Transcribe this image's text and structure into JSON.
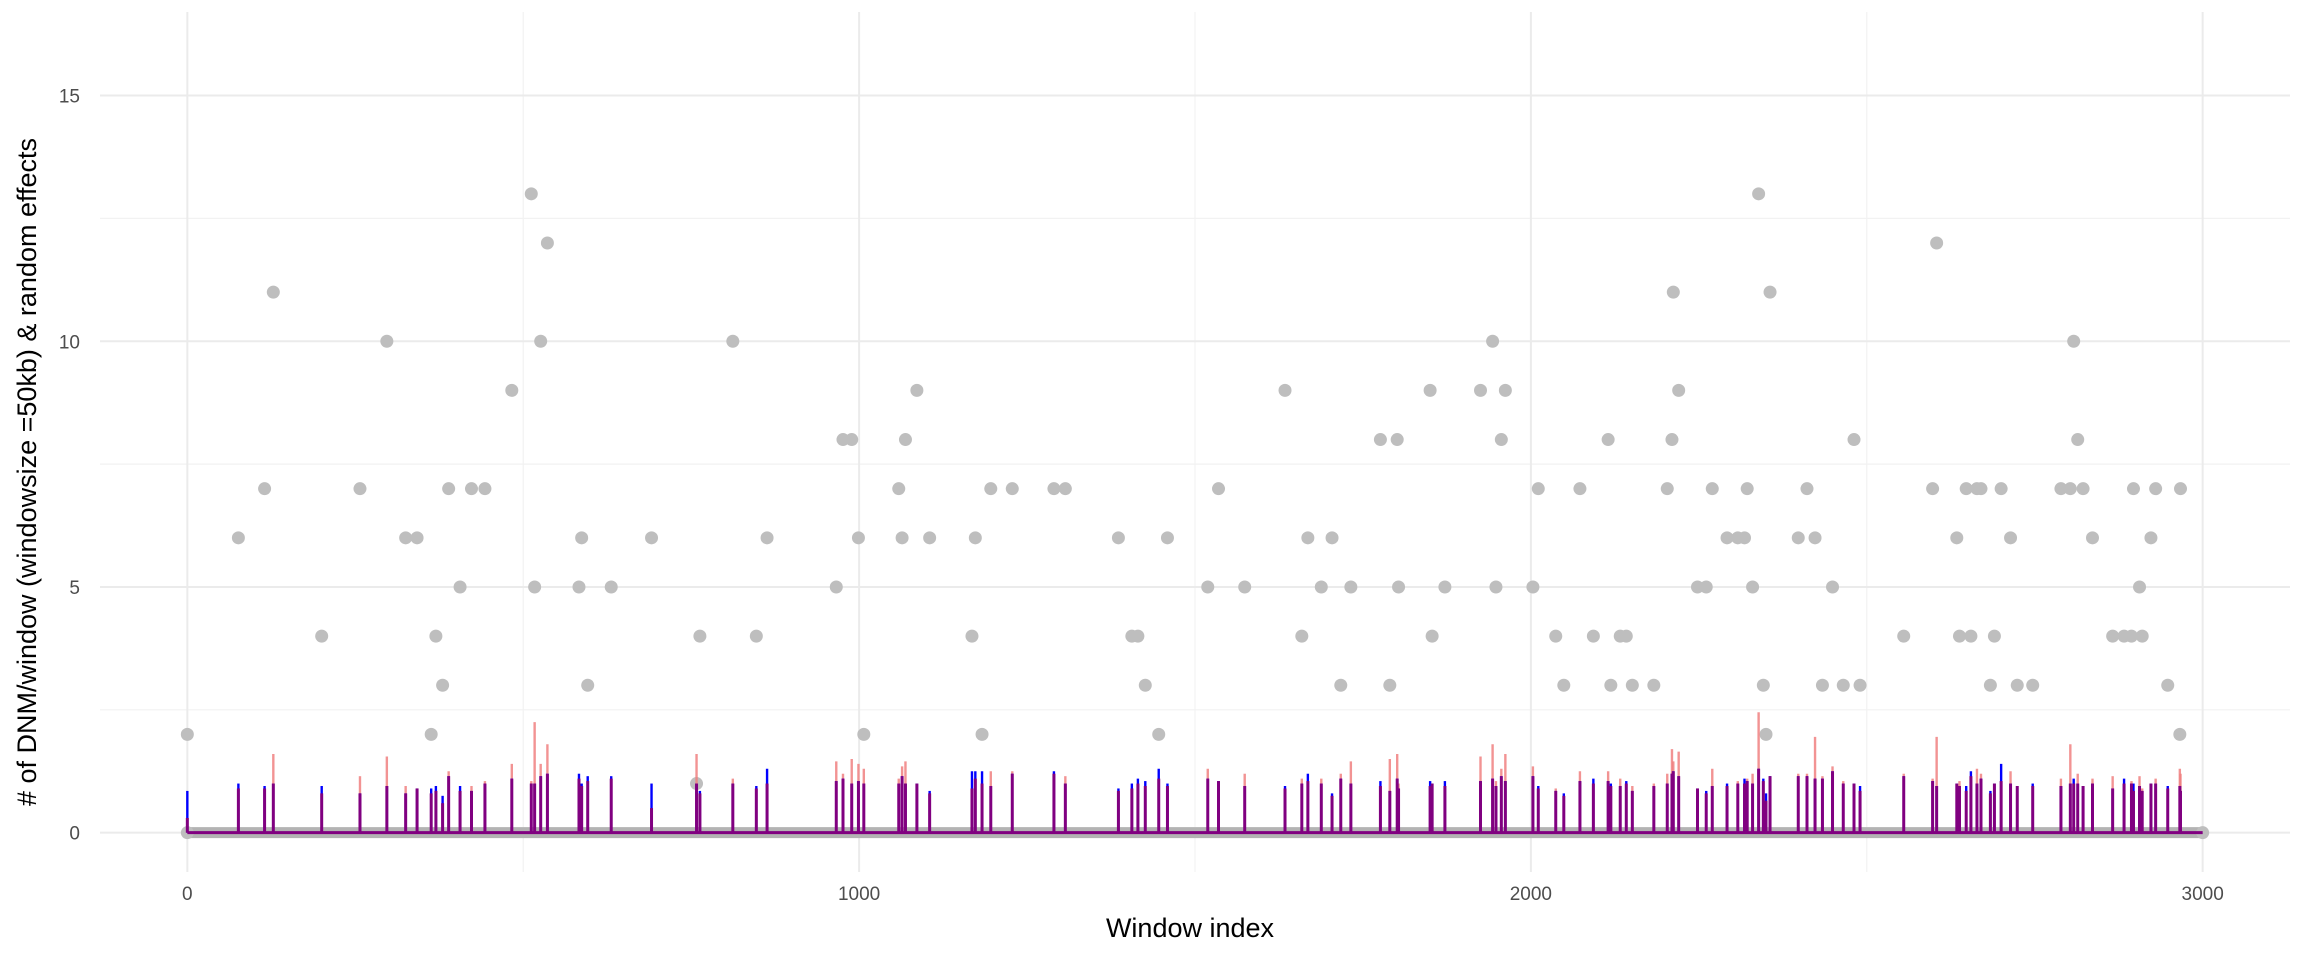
{
  "chart_data": {
    "type": "scatter",
    "title": "",
    "xlabel": "Window index",
    "ylabel": "# of DNM/window (windowsize =50kb) & random effects",
    "xlim": [
      -130,
      3130
    ],
    "ylim": [
      -0.8,
      16.7
    ],
    "x_ticks": [
      0,
      1000,
      2000,
      3000
    ],
    "x_tick_labels": [
      "0",
      "1000",
      "2000",
      "3000"
    ],
    "y_ticks": [
      0,
      5,
      10,
      15
    ],
    "y_tick_labels": [
      "0",
      "5",
      "10",
      "15"
    ],
    "grid": true,
    "legend": "none",
    "colors": {
      "points": "#bebebe",
      "series_red": "#f08080",
      "series_blue": "#0000ff",
      "series_purple": "#800080",
      "baseline": "#b3b3b3"
    },
    "series": [
      {
        "kind": "points",
        "x": [
          0,
          76,
          115,
          128,
          200,
          257,
          297,
          325,
          342,
          363,
          370,
          380,
          389,
          406,
          423,
          443,
          483,
          512,
          517,
          526,
          536,
          583,
          587,
          596,
          631,
          691,
          758,
          763,
          812,
          847,
          863,
          966,
          976,
          989,
          999,
          1007,
          1059,
          1064,
          1069,
          1086,
          1105,
          1168,
          1173,
          1183,
          1196,
          1228,
          1290,
          1307,
          1386,
          1406,
          1415,
          1426,
          1446,
          1459,
          1519,
          1535,
          1574,
          1634,
          1659,
          1668,
          1688,
          1704,
          1717,
          1732,
          1776,
          1790,
          1801,
          1803,
          1850,
          1853,
          1872,
          1925,
          1943,
          1948,
          1956,
          1962,
          2003,
          2011,
          2037,
          2049,
          2073,
          2093,
          2115,
          2119,
          2133,
          2142,
          2151,
          2183,
          2203,
          2210,
          2212,
          2220,
          2248,
          2261,
          2270,
          2292,
          2308,
          2318,
          2322,
          2330,
          2339,
          2346,
          2350,
          2356,
          2398,
          2411,
          2423,
          2434,
          2449,
          2465,
          2481,
          2490,
          2555,
          2598,
          2604,
          2634,
          2638,
          2648,
          2655,
          2664,
          2670,
          2684,
          2690,
          2700,
          2714,
          2724,
          2747,
          2789,
          2803,
          2808,
          2814,
          2822,
          2836,
          2866,
          2883,
          2894,
          2897,
          2906,
          2910,
          2923,
          2930,
          2948,
          2966,
          2967
        ],
        "y": [
          2,
          6,
          7,
          11,
          4,
          7,
          10,
          6,
          6,
          2,
          4,
          3,
          7,
          5,
          7,
          7,
          9,
          13,
          5,
          10,
          12,
          5,
          6,
          3,
          5,
          6,
          1,
          4,
          10,
          4,
          6,
          5,
          8,
          8,
          6,
          2,
          7,
          6,
          8,
          9,
          6,
          4,
          6,
          2,
          7,
          7,
          7,
          7,
          6,
          4,
          4,
          3,
          2,
          6,
          5,
          7,
          5,
          9,
          4,
          6,
          5,
          6,
          3,
          5,
          8,
          3,
          8,
          5,
          9,
          4,
          5,
          9,
          10,
          5,
          8,
          9,
          5,
          7,
          4,
          3,
          7,
          4,
          8,
          3,
          4,
          4,
          3,
          3,
          7,
          8,
          11,
          9,
          5,
          5,
          7,
          6,
          6,
          6,
          7,
          5,
          13,
          3,
          2,
          11,
          6,
          7,
          6,
          3,
          5,
          3,
          8,
          3,
          4,
          7,
          12,
          6,
          4,
          7,
          4,
          7,
          7,
          3,
          4,
          7,
          6,
          3,
          3,
          7,
          7,
          10,
          8,
          7,
          6,
          4,
          4,
          4,
          7,
          5,
          4,
          6,
          7,
          3,
          2,
          7
        ],
        "baseline_from": 0,
        "baseline_to": 3000
      },
      {
        "kind": "spikes",
        "name": "",
        "x": [
          0,
          76,
          115,
          128,
          200,
          257,
          297,
          325,
          342,
          363,
          370,
          380,
          389,
          406,
          423,
          443,
          483,
          512,
          517,
          526,
          536,
          583,
          587,
          596,
          631,
          691,
          758,
          763,
          812,
          847,
          863,
          966,
          976,
          989,
          999,
          1007,
          1059,
          1064,
          1069,
          1086,
          1105,
          1168,
          1173,
          1183,
          1196,
          1228,
          1290,
          1307,
          1386,
          1406,
          1415,
          1426,
          1446,
          1459,
          1519,
          1535,
          1574,
          1634,
          1659,
          1668,
          1688,
          1704,
          1717,
          1732,
          1776,
          1790,
          1801,
          1803,
          1850,
          1853,
          1872,
          1925,
          1943,
          1948,
          1956,
          1962,
          2003,
          2011,
          2037,
          2049,
          2073,
          2093,
          2115,
          2119,
          2133,
          2142,
          2151,
          2183,
          2203,
          2210,
          2212,
          2220,
          2248,
          2261,
          2270,
          2292,
          2308,
          2318,
          2322,
          2330,
          2339,
          2346,
          2350,
          2356,
          2398,
          2411,
          2423,
          2434,
          2449,
          2465,
          2481,
          2490,
          2555,
          2598,
          2604,
          2634,
          2638,
          2648,
          2655,
          2664,
          2670,
          2684,
          2690,
          2700,
          2714,
          2724,
          2747,
          2789,
          2803,
          2808,
          2814,
          2822,
          2836,
          2866,
          2883,
          2894,
          2897,
          2906,
          2910,
          2923,
          2930,
          2948,
          2966,
          2967
        ],
        "red": [
          0.3,
          0.9,
          0.9,
          1.6,
          0.8,
          1.15,
          1.55,
          0.95,
          0.9,
          0.8,
          0.85,
          0.6,
          1.25,
          0.85,
          0.95,
          1.05,
          1.4,
          1.05,
          2.25,
          1.4,
          1.8,
          1.1,
          0.95,
          1.05,
          1.1,
          0.5,
          1.6,
          0.8,
          1.1,
          0.9,
          1.0,
          1.45,
          1.2,
          1.5,
          1.4,
          1.3,
          1.1,
          1.35,
          1.45,
          1.0,
          0.8,
          0.9,
          1.1,
          1.0,
          1.25,
          1.25,
          1.2,
          1.15,
          0.85,
          0.9,
          1.0,
          0.95,
          1.1,
          0.95,
          1.3,
          1.05,
          1.2,
          0.9,
          1.1,
          1.05,
          1.1,
          0.75,
          1.2,
          1.45,
          0.95,
          1.5,
          1.6,
          1.0,
          0.95,
          1.0,
          0.95,
          1.55,
          1.8,
          1.05,
          1.3,
          1.6,
          1.35,
          0.9,
          0.9,
          0.75,
          1.25,
          1.0,
          1.25,
          0.95,
          1.1,
          1.0,
          0.95,
          1.0,
          1.2,
          1.7,
          1.45,
          1.65,
          0.9,
          0.8,
          1.3,
          0.95,
          1.05,
          1.0,
          1.1,
          1.2,
          2.45,
          1.05,
          0.65,
          1.15,
          1.2,
          1.2,
          1.95,
          1.15,
          1.35,
          1.05,
          1.0,
          0.85,
          1.2,
          1.1,
          1.95,
          1.0,
          1.05,
          0.85,
          1.15,
          1.3,
          1.2,
          0.8,
          1.0,
          1.05,
          1.25,
          0.95,
          0.95,
          1.1,
          1.8,
          1.0,
          1.2,
          0.95,
          1.1,
          1.15,
          1.0,
          1.05,
          0.85,
          1.15,
          0.9,
          1.0,
          1.1,
          0.9,
          1.3,
          1.2
        ],
        "blue": [
          0.85,
          1.0,
          0.95,
          1.0,
          0.95,
          0.8,
          0.95,
          0.8,
          0.9,
          0.9,
          0.95,
          0.75,
          1.15,
          0.95,
          0.85,
          1.0,
          1.1,
          1.0,
          1.0,
          1.15,
          1.2,
          1.2,
          1.0,
          1.15,
          1.15,
          1.0,
          1.0,
          0.85,
          1.0,
          0.95,
          1.3,
          1.05,
          1.1,
          1.0,
          1.05,
          1.0,
          1.0,
          1.15,
          1.0,
          1.0,
          0.85,
          1.25,
          1.25,
          1.25,
          0.95,
          1.2,
          1.25,
          1.0,
          0.9,
          1.0,
          1.1,
          1.05,
          1.3,
          1.0,
          1.1,
          1.05,
          0.95,
          0.95,
          1.0,
          1.2,
          1.0,
          0.8,
          1.1,
          1.0,
          1.05,
          0.85,
          1.1,
          0.9,
          1.05,
          1.0,
          1.05,
          1.05,
          1.1,
          0.95,
          1.15,
          1.05,
          1.15,
          0.95,
          0.85,
          0.8,
          1.05,
          1.1,
          1.05,
          1.0,
          0.95,
          1.05,
          0.85,
          0.95,
          1.0,
          1.2,
          1.25,
          1.15,
          0.9,
          0.85,
          0.95,
          1.0,
          1.0,
          1.1,
          1.05,
          1.0,
          1.3,
          1.1,
          0.8,
          1.15,
          1.15,
          1.15,
          1.1,
          1.1,
          1.25,
          1.0,
          1.0,
          0.95,
          1.15,
          1.05,
          0.95,
          1.0,
          0.95,
          0.95,
          1.25,
          1.0,
          1.1,
          0.85,
          1.0,
          1.4,
          1.0,
          0.95,
          1.0,
          0.95,
          1.0,
          1.1,
          1.0,
          0.95,
          1.0,
          0.9,
          1.1,
          1.0,
          1.0,
          0.95,
          0.85,
          1.0,
          1.0,
          0.95,
          0.95,
          0.85,
          1.05,
          1.0
        ]
      }
    ]
  }
}
